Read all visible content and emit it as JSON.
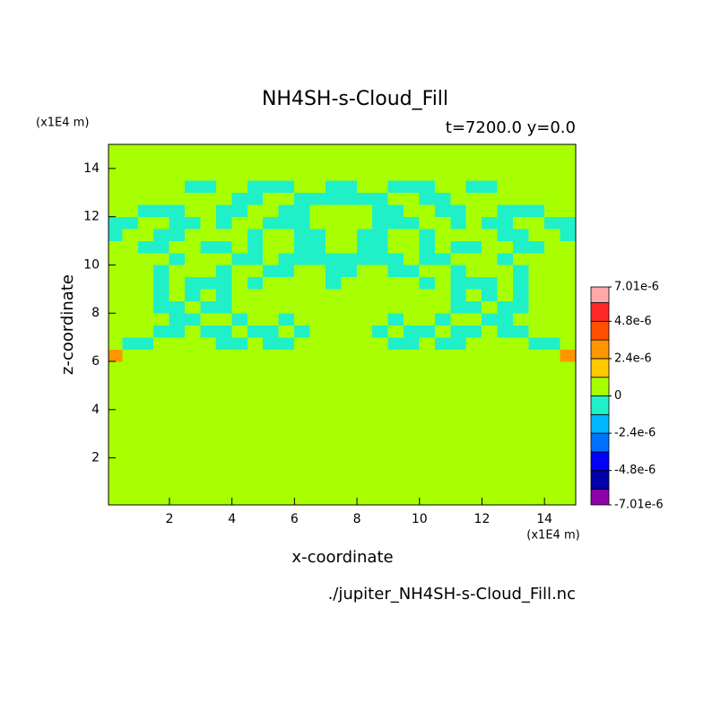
{
  "chart_data": {
    "type": "contour",
    "title": "NH4SH-s-Cloud_Fill",
    "subtitle": "t=7200.0 y=0.0",
    "x_label": "x-coordinate",
    "y_label": "z-coordinate",
    "x_unit": "(x1E4 m)",
    "y_unit": "(x1E4 m)",
    "footer": "./jupiter_NH4SH-s-Cloud_Fill.nc",
    "xlim": [
      0.05,
      15
    ],
    "ylim": [
      0.05,
      15
    ],
    "xticks": [
      2,
      4,
      6,
      8,
      10,
      12,
      14
    ],
    "yticks": [
      2,
      4,
      6,
      8,
      10,
      12,
      14
    ],
    "levels": [
      -7.01e-06,
      -6e-06,
      -4.8e-06,
      -3.6e-06,
      -2.4e-06,
      -1.2e-06,
      0,
      1.2e-06,
      2.4e-06,
      3.6e-06,
      4.8e-06,
      6e-06,
      7.01e-06
    ],
    "colors": [
      "#8c00a8",
      "#0000a8",
      "#0000f8",
      "#0070ff",
      "#00b8ff",
      "#20f0c8",
      "#a8ff00",
      "#ffc800",
      "#ff9600",
      "#ff5000",
      "#ff2828",
      "#ffa8a8"
    ],
    "colorbar_ticks": [
      {
        "value": 7.01e-06,
        "label": "7.01e-6"
      },
      {
        "value": 4.8e-06,
        "label": "4.8e-6"
      },
      {
        "value": 2.4e-06,
        "label": "2.4e-6"
      },
      0,
      {
        "value": -2.4e-06,
        "label": "-2.4e-6"
      },
      {
        "value": -4.8e-06,
        "label": "-4.8e-6"
      },
      {
        "value": -7.01e-06,
        "label": "-7.01e-6"
      }
    ],
    "x": [
      0.25,
      0.75,
      1.25,
      1.75,
      2.25,
      2.75,
      3.25,
      3.75,
      4.25,
      4.75,
      5.25,
      5.75,
      6.25,
      6.75,
      7.25,
      7.75,
      8.25,
      8.75,
      9.25,
      9.75,
      10.25,
      10.75,
      11.25,
      11.75,
      12.25,
      12.75,
      13.25,
      13.75,
      14.25,
      14.75
    ],
    "y": [
      0.25,
      0.75,
      1.25,
      1.75,
      2.25,
      2.75,
      3.25,
      3.75,
      4.25,
      4.75,
      5.25,
      5.75,
      6.25,
      6.75,
      7.25,
      7.75,
      8.25,
      8.75,
      9.25,
      9.75,
      10.25,
      10.75,
      11.25,
      11.75,
      12.25,
      12.75,
      13.25,
      13.75,
      14.25,
      14.75
    ],
    "z": [
      [
        5e-07,
        5e-07,
        5e-07,
        5e-07,
        5e-07,
        5e-07,
        5e-07,
        5e-07,
        5e-07,
        5e-07,
        5e-07,
        5e-07,
        5e-07,
        5e-07,
        5e-07,
        5e-07,
        5e-07,
        5e-07,
        5e-07,
        5e-07,
        5e-07,
        5e-07,
        5e-07,
        5e-07,
        5e-07,
        5e-07,
        5e-07,
        5e-07,
        5e-07,
        5e-07
      ],
      [
        5e-07,
        5e-07,
        5e-07,
        5e-07,
        5e-07,
        5e-07,
        5e-07,
        5e-07,
        5e-07,
        5e-07,
        5e-07,
        5e-07,
        5e-07,
        5e-07,
        5e-07,
        5e-07,
        5e-07,
        5e-07,
        5e-07,
        5e-07,
        5e-07,
        5e-07,
        5e-07,
        5e-07,
        5e-07,
        5e-07,
        5e-07,
        5e-07,
        5e-07,
        5e-07
      ],
      [
        5e-07,
        5e-07,
        5e-07,
        5e-07,
        5e-07,
        5e-07,
        5e-07,
        5e-07,
        5e-07,
        5e-07,
        5e-07,
        5e-07,
        5e-07,
        5e-07,
        5e-07,
        5e-07,
        5e-07,
        5e-07,
        5e-07,
        5e-07,
        5e-07,
        5e-07,
        5e-07,
        5e-07,
        5e-07,
        5e-07,
        5e-07,
        5e-07,
        5e-07,
        5e-07
      ],
      [
        5e-07,
        5e-07,
        5e-07,
        5e-07,
        5e-07,
        5e-07,
        5e-07,
        5e-07,
        5e-07,
        5e-07,
        5e-07,
        5e-07,
        5e-07,
        5e-07,
        5e-07,
        5e-07,
        5e-07,
        5e-07,
        5e-07,
        5e-07,
        5e-07,
        5e-07,
        5e-07,
        5e-07,
        5e-07,
        5e-07,
        5e-07,
        5e-07,
        5e-07,
        5e-07
      ],
      [
        5e-07,
        5e-07,
        5e-07,
        5e-07,
        5e-07,
        5e-07,
        5e-07,
        5e-07,
        5e-07,
        5e-07,
        5e-07,
        5e-07,
        5e-07,
        5e-07,
        5e-07,
        5e-07,
        5e-07,
        5e-07,
        5e-07,
        5e-07,
        5e-07,
        5e-07,
        5e-07,
        5e-07,
        5e-07,
        5e-07,
        5e-07,
        5e-07,
        5e-07,
        5e-07
      ],
      [
        5e-07,
        5e-07,
        5e-07,
        5e-07,
        5e-07,
        5e-07,
        5e-07,
        5e-07,
        5e-07,
        5e-07,
        5e-07,
        5e-07,
        5e-07,
        5e-07,
        5e-07,
        5e-07,
        5e-07,
        5e-07,
        5e-07,
        5e-07,
        5e-07,
        5e-07,
        5e-07,
        5e-07,
        5e-07,
        5e-07,
        5e-07,
        5e-07,
        5e-07,
        5e-07
      ],
      [
        5e-07,
        5e-07,
        5e-07,
        5e-07,
        5e-07,
        5e-07,
        5e-07,
        5e-07,
        5e-07,
        5e-07,
        5e-07,
        5e-07,
        5e-07,
        5e-07,
        5e-07,
        5e-07,
        5e-07,
        5e-07,
        5e-07,
        5e-07,
        5e-07,
        5e-07,
        5e-07,
        5e-07,
        5e-07,
        5e-07,
        5e-07,
        5e-07,
        5e-07,
        5e-07
      ],
      [
        5e-07,
        5e-07,
        5e-07,
        5e-07,
        5e-07,
        5e-07,
        5e-07,
        5e-07,
        5e-07,
        5e-07,
        5e-07,
        5e-07,
        5e-07,
        5e-07,
        5e-07,
        5e-07,
        5e-07,
        5e-07,
        5e-07,
        5e-07,
        5e-07,
        5e-07,
        5e-07,
        5e-07,
        5e-07,
        5e-07,
        5e-07,
        5e-07,
        5e-07,
        5e-07
      ],
      [
        5e-07,
        5e-07,
        5e-07,
        5e-07,
        5e-07,
        5e-07,
        5e-07,
        5e-07,
        5e-07,
        5e-07,
        5e-07,
        5e-07,
        5e-07,
        5e-07,
        5e-07,
        5e-07,
        5e-07,
        5e-07,
        5e-07,
        5e-07,
        5e-07,
        5e-07,
        5e-07,
        5e-07,
        5e-07,
        5e-07,
        5e-07,
        5e-07,
        5e-07,
        5e-07
      ],
      [
        5e-07,
        5e-07,
        5e-07,
        5e-07,
        5e-07,
        5e-07,
        5e-07,
        5e-07,
        5e-07,
        5e-07,
        5e-07,
        5e-07,
        5e-07,
        5e-07,
        5e-07,
        5e-07,
        5e-07,
        5e-07,
        5e-07,
        5e-07,
        5e-07,
        5e-07,
        5e-07,
        5e-07,
        5e-07,
        5e-07,
        5e-07,
        5e-07,
        5e-07,
        5e-07
      ],
      [
        5e-07,
        5e-07,
        5e-07,
        5e-07,
        5e-07,
        5e-07,
        5e-07,
        5e-07,
        5e-07,
        5e-07,
        5e-07,
        5e-07,
        5e-07,
        5e-07,
        5e-07,
        5e-07,
        5e-07,
        5e-07,
        5e-07,
        5e-07,
        5e-07,
        5e-07,
        5e-07,
        5e-07,
        5e-07,
        5e-07,
        5e-07,
        5e-07,
        5e-07,
        5e-07
      ],
      [
        5e-07,
        5e-07,
        5e-07,
        5e-07,
        5e-07,
        5e-07,
        5e-07,
        5e-07,
        5e-07,
        5e-07,
        5e-07,
        5e-07,
        5e-07,
        5e-07,
        5e-07,
        5e-07,
        5e-07,
        5e-07,
        5e-07,
        5e-07,
        5e-07,
        5e-07,
        5e-07,
        5e-07,
        5e-07,
        5e-07,
        5e-07,
        5e-07,
        5e-07,
        5e-07
      ],
      [
        3e-06,
        5e-07,
        5e-07,
        5e-07,
        5e-07,
        5e-07,
        5e-07,
        5e-07,
        5e-07,
        5e-07,
        5e-07,
        5e-07,
        5e-07,
        5e-07,
        5e-07,
        5e-07,
        5e-07,
        5e-07,
        5e-07,
        5e-07,
        5e-07,
        5e-07,
        5e-07,
        5e-07,
        5e-07,
        5e-07,
        5e-07,
        5e-07,
        5e-07,
        3e-06
      ],
      [
        5e-07,
        -5e-07,
        -5e-07,
        5e-07,
        5e-07,
        5e-07,
        5e-07,
        -5e-07,
        -5e-07,
        5e-07,
        -5e-07,
        -5e-07,
        5e-07,
        5e-07,
        5e-07,
        5e-07,
        5e-07,
        5e-07,
        -5e-07,
        -5e-07,
        5e-07,
        -5e-07,
        -5e-07,
        5e-07,
        5e-07,
        5e-07,
        5e-07,
        -5e-07,
        -5e-07,
        5e-07
      ],
      [
        5e-07,
        5e-07,
        5e-07,
        -5e-07,
        -5e-07,
        5e-07,
        -5e-07,
        -5e-07,
        5e-07,
        -5e-07,
        -5e-07,
        5e-07,
        -5e-07,
        5e-07,
        5e-07,
        5e-07,
        5e-07,
        -5e-07,
        5e-07,
        -5e-07,
        -5e-07,
        5e-07,
        -5e-07,
        -5e-07,
        5e-07,
        -5e-07,
        -5e-07,
        5e-07,
        5e-07,
        5e-07
      ],
      [
        5e-07,
        5e-07,
        5e-07,
        5e-07,
        -5e-07,
        -5e-07,
        5e-07,
        5e-07,
        -5e-07,
        5e-07,
        5e-07,
        -5e-07,
        5e-07,
        5e-07,
        5e-07,
        5e-07,
        5e-07,
        5e-07,
        -5e-07,
        5e-07,
        5e-07,
        -5e-07,
        5e-07,
        5e-07,
        -5e-07,
        -5e-07,
        5e-07,
        5e-07,
        5e-07,
        5e-07
      ],
      [
        5e-07,
        5e-07,
        5e-07,
        -5e-07,
        -5e-07,
        5e-07,
        -5e-07,
        -5e-07,
        5e-07,
        5e-07,
        5e-07,
        5e-07,
        5e-07,
        5e-07,
        5e-07,
        5e-07,
        5e-07,
        5e-07,
        5e-07,
        5e-07,
        5e-07,
        5e-07,
        -5e-07,
        -5e-07,
        5e-07,
        -5e-07,
        -5e-07,
        5e-07,
        5e-07,
        5e-07
      ],
      [
        5e-07,
        5e-07,
        5e-07,
        -5e-07,
        5e-07,
        -5e-07,
        5e-07,
        -5e-07,
        5e-07,
        5e-07,
        5e-07,
        5e-07,
        5e-07,
        5e-07,
        5e-07,
        5e-07,
        5e-07,
        5e-07,
        5e-07,
        5e-07,
        5e-07,
        5e-07,
        -5e-07,
        5e-07,
        -5e-07,
        5e-07,
        -5e-07,
        5e-07,
        5e-07,
        5e-07
      ],
      [
        5e-07,
        5e-07,
        5e-07,
        -5e-07,
        5e-07,
        -5e-07,
        -5e-07,
        -5e-07,
        5e-07,
        -5e-07,
        5e-07,
        5e-07,
        5e-07,
        5e-07,
        -5e-07,
        5e-07,
        5e-07,
        5e-07,
        5e-07,
        5e-07,
        -5e-07,
        5e-07,
        -5e-07,
        -5e-07,
        -5e-07,
        5e-07,
        -5e-07,
        5e-07,
        5e-07,
        5e-07
      ],
      [
        5e-07,
        5e-07,
        5e-07,
        -5e-07,
        5e-07,
        5e-07,
        5e-07,
        -5e-07,
        5e-07,
        5e-07,
        -5e-07,
        -5e-07,
        5e-07,
        5e-07,
        -5e-07,
        -5e-07,
        5e-07,
        5e-07,
        -5e-07,
        -5e-07,
        5e-07,
        5e-07,
        -5e-07,
        5e-07,
        5e-07,
        5e-07,
        -5e-07,
        5e-07,
        5e-07,
        5e-07
      ],
      [
        5e-07,
        5e-07,
        5e-07,
        5e-07,
        -5e-07,
        5e-07,
        5e-07,
        5e-07,
        -5e-07,
        -5e-07,
        5e-07,
        -5e-07,
        -5e-07,
        -5e-07,
        -5e-07,
        -5e-07,
        -5e-07,
        -5e-07,
        -5e-07,
        5e-07,
        -5e-07,
        -5e-07,
        5e-07,
        5e-07,
        5e-07,
        -5e-07,
        5e-07,
        5e-07,
        5e-07,
        5e-07
      ],
      [
        5e-07,
        5e-07,
        -5e-07,
        -5e-07,
        5e-07,
        5e-07,
        -5e-07,
        -5e-07,
        5e-07,
        -5e-07,
        5e-07,
        5e-07,
        -5e-07,
        -5e-07,
        5e-07,
        5e-07,
        -5e-07,
        -5e-07,
        5e-07,
        5e-07,
        -5e-07,
        5e-07,
        -5e-07,
        -5e-07,
        5e-07,
        5e-07,
        -5e-07,
        -5e-07,
        5e-07,
        5e-07
      ],
      [
        -5e-07,
        5e-07,
        5e-07,
        -5e-07,
        -5e-07,
        5e-07,
        5e-07,
        5e-07,
        5e-07,
        -5e-07,
        5e-07,
        5e-07,
        -5e-07,
        -5e-07,
        5e-07,
        5e-07,
        -5e-07,
        -5e-07,
        5e-07,
        5e-07,
        -5e-07,
        5e-07,
        5e-07,
        5e-07,
        5e-07,
        -5e-07,
        -5e-07,
        5e-07,
        5e-07,
        -5e-07
      ],
      [
        -5e-07,
        -5e-07,
        5e-07,
        5e-07,
        -5e-07,
        -5e-07,
        5e-07,
        -5e-07,
        5e-07,
        5e-07,
        -5e-07,
        -5e-07,
        -5e-07,
        5e-07,
        5e-07,
        5e-07,
        5e-07,
        -5e-07,
        -5e-07,
        -5e-07,
        5e-07,
        5e-07,
        -5e-07,
        5e-07,
        -5e-07,
        -5e-07,
        5e-07,
        5e-07,
        -5e-07,
        -5e-07
      ],
      [
        5e-07,
        5e-07,
        -5e-07,
        -5e-07,
        -5e-07,
        5e-07,
        5e-07,
        -5e-07,
        -5e-07,
        5e-07,
        5e-07,
        -5e-07,
        -5e-07,
        5e-07,
        5e-07,
        5e-07,
        5e-07,
        -5e-07,
        -5e-07,
        5e-07,
        5e-07,
        -5e-07,
        -5e-07,
        5e-07,
        5e-07,
        -5e-07,
        -5e-07,
        -5e-07,
        5e-07,
        5e-07
      ],
      [
        5e-07,
        5e-07,
        5e-07,
        5e-07,
        5e-07,
        5e-07,
        5e-07,
        5e-07,
        -5e-07,
        -5e-07,
        5e-07,
        5e-07,
        -5e-07,
        -5e-07,
        -5e-07,
        -5e-07,
        -5e-07,
        -5e-07,
        5e-07,
        5e-07,
        -5e-07,
        -5e-07,
        5e-07,
        5e-07,
        5e-07,
        5e-07,
        5e-07,
        5e-07,
        5e-07,
        5e-07
      ],
      [
        5e-07,
        5e-07,
        5e-07,
        5e-07,
        5e-07,
        -5e-07,
        -5e-07,
        5e-07,
        5e-07,
        -5e-07,
        -5e-07,
        -5e-07,
        5e-07,
        5e-07,
        -5e-07,
        -5e-07,
        5e-07,
        5e-07,
        -5e-07,
        -5e-07,
        -5e-07,
        5e-07,
        5e-07,
        -5e-07,
        -5e-07,
        5e-07,
        5e-07,
        5e-07,
        5e-07,
        5e-07
      ],
      [
        5e-07,
        5e-07,
        5e-07,
        5e-07,
        5e-07,
        5e-07,
        5e-07,
        5e-07,
        5e-07,
        5e-07,
        5e-07,
        5e-07,
        5e-07,
        5e-07,
        5e-07,
        5e-07,
        5e-07,
        5e-07,
        5e-07,
        5e-07,
        5e-07,
        5e-07,
        5e-07,
        5e-07,
        5e-07,
        5e-07,
        5e-07,
        5e-07,
        5e-07,
        5e-07
      ],
      [
        5e-07,
        5e-07,
        5e-07,
        5e-07,
        5e-07,
        5e-07,
        5e-07,
        5e-07,
        5e-07,
        5e-07,
        5e-07,
        5e-07,
        5e-07,
        5e-07,
        5e-07,
        5e-07,
        5e-07,
        5e-07,
        5e-07,
        5e-07,
        5e-07,
        5e-07,
        5e-07,
        5e-07,
        5e-07,
        5e-07,
        5e-07,
        5e-07,
        5e-07,
        5e-07
      ],
      [
        5e-07,
        5e-07,
        5e-07,
        5e-07,
        5e-07,
        5e-07,
        5e-07,
        5e-07,
        5e-07,
        5e-07,
        5e-07,
        5e-07,
        5e-07,
        5e-07,
        5e-07,
        5e-07,
        5e-07,
        5e-07,
        5e-07,
        5e-07,
        5e-07,
        5e-07,
        5e-07,
        5e-07,
        5e-07,
        5e-07,
        5e-07,
        5e-07,
        5e-07,
        5e-07
      ]
    ]
  }
}
